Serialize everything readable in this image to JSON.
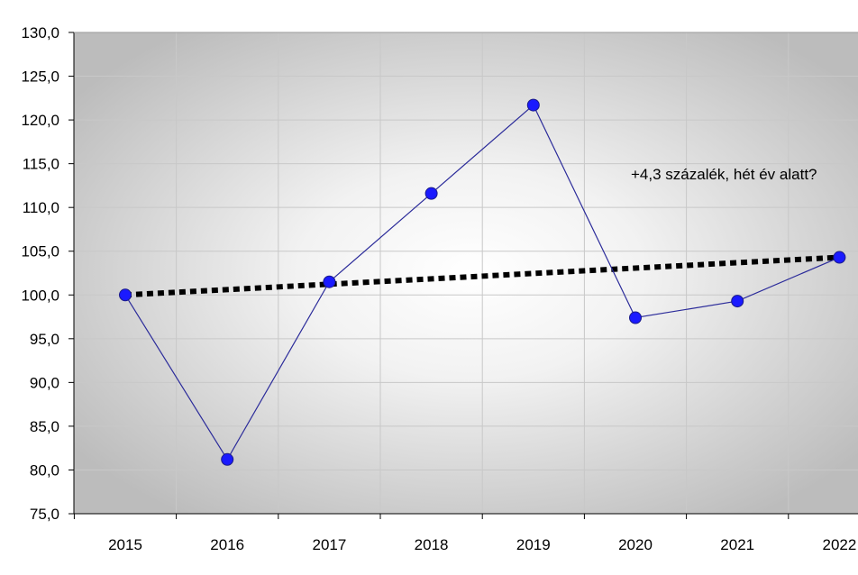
{
  "chart_data": {
    "type": "line",
    "categories": [
      "2015",
      "2016",
      "2017",
      "2018",
      "2019",
      "2020",
      "2021",
      "2022"
    ],
    "series": [
      {
        "values": [
          100.0,
          81.2,
          101.5,
          111.6,
          121.7,
          97.4,
          99.3,
          104.3
        ],
        "color": "#1a1aff",
        "line_color": "#2b2b9a"
      }
    ],
    "trendline": {
      "values": [
        100.0,
        104.3
      ],
      "style": "dotted",
      "color": "#000000"
    },
    "ylim": [
      75.0,
      130.0
    ],
    "yticks": [
      "75,0",
      "80,0",
      "85,0",
      "90,0",
      "95,0",
      "100,0",
      "105,0",
      "110,0",
      "115,0",
      "120,0",
      "125,0",
      "130,0"
    ],
    "grid": true,
    "annotation": "+4,3 százalék, hét év alatt?"
  }
}
